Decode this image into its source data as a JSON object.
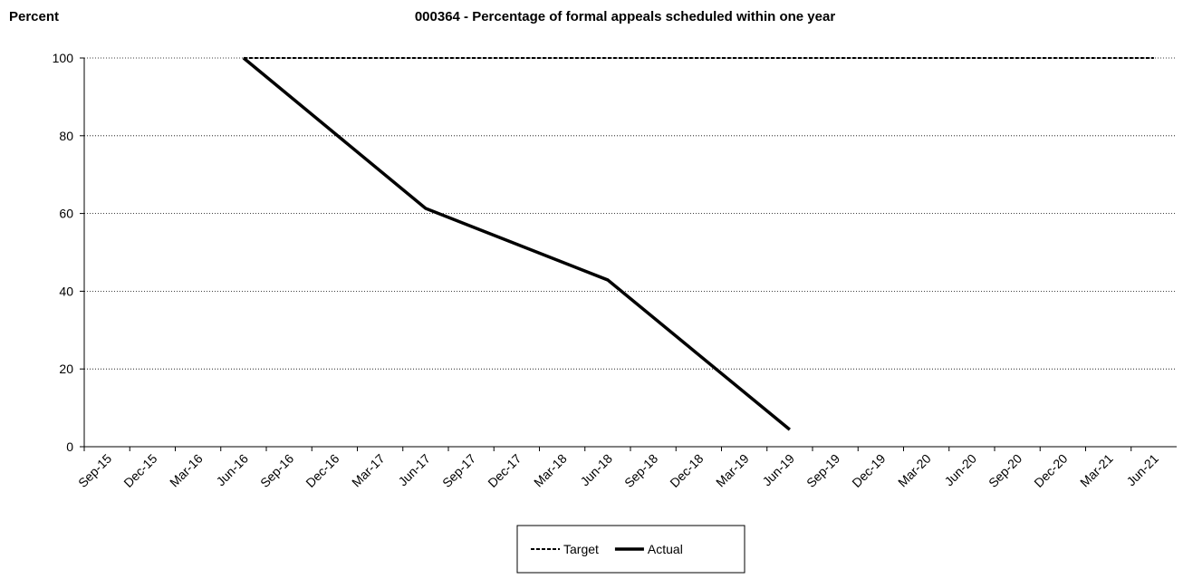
{
  "chart_data": {
    "type": "line",
    "title": "000364 - Percentage of formal appeals scheduled within one year",
    "y_label": "Percent",
    "categories": [
      "Sep-15",
      "Dec-15",
      "Mar-16",
      "Jun-16",
      "Sep-16",
      "Dec-16",
      "Mar-17",
      "Jun-17",
      "Sep-17",
      "Dec-17",
      "Mar-18",
      "Jun-18",
      "Sep-18",
      "Dec-18",
      "Mar-19",
      "Jun-19",
      "Sep-19",
      "Dec-19",
      "Mar-20",
      "Jun-20",
      "Sep-20",
      "Dec-20",
      "Mar-21",
      "Jun-21"
    ],
    "series": [
      {
        "name": "Target",
        "color": "#000000",
        "dash": true,
        "values": [
          null,
          null,
          null,
          100,
          100,
          100,
          100,
          100,
          100,
          100,
          100,
          100,
          100,
          100,
          100,
          100,
          100,
          100,
          100,
          100,
          100,
          100,
          100,
          100
        ]
      },
      {
        "name": "Actual",
        "color": "#000000",
        "dash": false,
        "values": [
          null,
          null,
          null,
          100,
          null,
          null,
          null,
          61.3,
          null,
          null,
          null,
          42.9,
          null,
          null,
          null,
          4.4,
          null,
          null,
          null,
          null,
          null,
          null,
          null,
          null
        ]
      }
    ],
    "span_gaps": true,
    "ylim": [
      0,
      100
    ],
    "yticks": [
      0,
      20,
      40,
      60,
      80,
      100
    ],
    "grid": true,
    "legend": "bottom"
  }
}
